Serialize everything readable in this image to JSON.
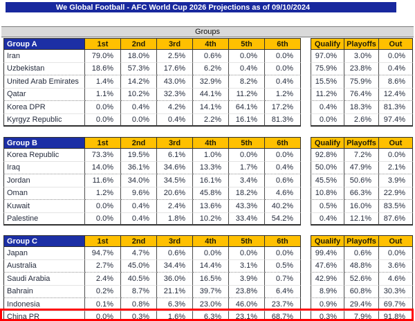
{
  "title": "We Global Football - AFC World Cup 2026 Projections as of 09/10/2024",
  "section_header": "Groups",
  "colors": {
    "title_bar_bg": "#18289E",
    "group_header_bg": "#1C2FA5",
    "column_header_bg": "#FFC000",
    "section_band_bg": "#D9D9D9",
    "highlight_border": "#FF0000"
  },
  "highlight": {
    "highlighted_team": "China PR"
  },
  "chart_data": {
    "type": "table",
    "position_columns": [
      "1st",
      "2nd",
      "3rd",
      "4th",
      "5th",
      "6th"
    ],
    "outcome_columns": [
      "Qualify",
      "Playoffs",
      "Out"
    ],
    "groups": [
      {
        "name": "Group A",
        "rows": [
          {
            "team": "Iran",
            "positions": [
              "79.0%",
              "18.0%",
              "2.5%",
              "0.6%",
              "0.0%",
              "0.0%"
            ],
            "outcomes": [
              "97.0%",
              "3.0%",
              "0.0%"
            ]
          },
          {
            "team": "Uzbekistan",
            "positions": [
              "18.6%",
              "57.3%",
              "17.6%",
              "6.2%",
              "0.4%",
              "0.0%"
            ],
            "outcomes": [
              "75.9%",
              "23.8%",
              "0.4%"
            ]
          },
          {
            "team": "United Arab Emirates",
            "positions": [
              "1.4%",
              "14.2%",
              "43.0%",
              "32.9%",
              "8.2%",
              "0.4%"
            ],
            "outcomes": [
              "15.5%",
              "75.9%",
              "8.6%"
            ]
          },
          {
            "team": "Qatar",
            "positions": [
              "1.1%",
              "10.2%",
              "32.3%",
              "44.1%",
              "11.2%",
              "1.2%"
            ],
            "outcomes": [
              "11.2%",
              "76.4%",
              "12.4%"
            ]
          },
          {
            "team": "Korea DPR",
            "positions": [
              "0.0%",
              "0.4%",
              "4.2%",
              "14.1%",
              "64.1%",
              "17.2%"
            ],
            "outcomes": [
              "0.4%",
              "18.3%",
              "81.3%"
            ]
          },
          {
            "team": "Kyrgyz Republic",
            "positions": [
              "0.0%",
              "0.0%",
              "0.4%",
              "2.2%",
              "16.1%",
              "81.3%"
            ],
            "outcomes": [
              "0.0%",
              "2.6%",
              "97.4%"
            ]
          }
        ]
      },
      {
        "name": "Group B",
        "rows": [
          {
            "team": "Korea Republic",
            "positions": [
              "73.3%",
              "19.5%",
              "6.1%",
              "1.0%",
              "0.0%",
              "0.0%"
            ],
            "outcomes": [
              "92.8%",
              "7.2%",
              "0.0%"
            ]
          },
          {
            "team": "Iraq",
            "positions": [
              "14.0%",
              "36.1%",
              "34.6%",
              "13.3%",
              "1.7%",
              "0.4%"
            ],
            "outcomes": [
              "50.0%",
              "47.9%",
              "2.1%"
            ]
          },
          {
            "team": "Jordan",
            "positions": [
              "11.6%",
              "34.0%",
              "34.5%",
              "16.1%",
              "3.4%",
              "0.6%"
            ],
            "outcomes": [
              "45.5%",
              "50.6%",
              "3.9%"
            ]
          },
          {
            "team": "Oman",
            "positions": [
              "1.2%",
              "9.6%",
              "20.6%",
              "45.8%",
              "18.2%",
              "4.6%"
            ],
            "outcomes": [
              "10.8%",
              "66.3%",
              "22.9%"
            ]
          },
          {
            "team": "Kuwait",
            "positions": [
              "0.0%",
              "0.4%",
              "2.4%",
              "13.6%",
              "43.3%",
              "40.2%"
            ],
            "outcomes": [
              "0.5%",
              "16.0%",
              "83.5%"
            ]
          },
          {
            "team": "Palestine",
            "positions": [
              "0.0%",
              "0.4%",
              "1.8%",
              "10.2%",
              "33.4%",
              "54.2%"
            ],
            "outcomes": [
              "0.4%",
              "12.1%",
              "87.6%"
            ]
          }
        ]
      },
      {
        "name": "Group C",
        "rows": [
          {
            "team": "Japan",
            "positions": [
              "94.7%",
              "4.7%",
              "0.6%",
              "0.0%",
              "0.0%",
              "0.0%"
            ],
            "outcomes": [
              "99.4%",
              "0.6%",
              "0.0%"
            ]
          },
          {
            "team": "Australia",
            "positions": [
              "2.7%",
              "45.0%",
              "34.4%",
              "14.4%",
              "3.1%",
              "0.5%"
            ],
            "outcomes": [
              "47.6%",
              "48.8%",
              "3.6%"
            ]
          },
          {
            "team": "Saudi Arabia",
            "positions": [
              "2.4%",
              "40.5%",
              "36.0%",
              "16.5%",
              "3.9%",
              "0.7%"
            ],
            "outcomes": [
              "42.9%",
              "52.6%",
              "4.6%"
            ]
          },
          {
            "team": "Bahrain",
            "positions": [
              "0.2%",
              "8.7%",
              "21.1%",
              "39.7%",
              "23.8%",
              "6.4%"
            ],
            "outcomes": [
              "8.9%",
              "60.8%",
              "30.3%"
            ]
          },
          {
            "team": "Indonesia",
            "positions": [
              "0.1%",
              "0.8%",
              "6.3%",
              "23.0%",
              "46.0%",
              "23.7%"
            ],
            "outcomes": [
              "0.9%",
              "29.4%",
              "69.7%"
            ]
          },
          {
            "team": "China PR",
            "positions": [
              "0.0%",
              "0.3%",
              "1.6%",
              "6.3%",
              "23.1%",
              "68.7%"
            ],
            "outcomes": [
              "0.3%",
              "7.9%",
              "91.8%"
            ]
          }
        ]
      }
    ]
  }
}
